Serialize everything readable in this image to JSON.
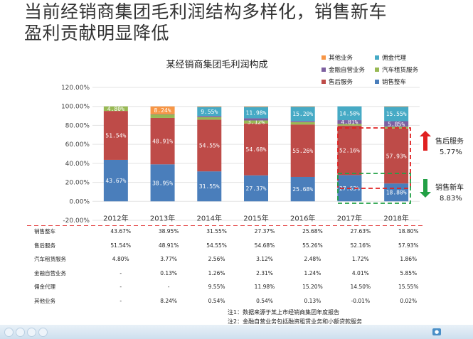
{
  "headline": {
    "line1": "当前经销商集团毛利润结构多样化，销售新车",
    "line2": "盈利贡献明显降低"
  },
  "chart_data": {
    "type": "bar",
    "stacked": true,
    "title": "某经销商集团毛利润构成",
    "categories": [
      "2012年",
      "2013年",
      "2014年",
      "2015年",
      "2016年",
      "2017年",
      "2018年"
    ],
    "y_ticks": [
      "-20.00%",
      "0.00%",
      "20.00%",
      "40.00%",
      "60.00%",
      "80.00%",
      "100.00%",
      "120.00%"
    ],
    "ylim": [
      -20,
      120
    ],
    "legend_position": "top-right",
    "series": [
      {
        "name": "销售整车",
        "color": "#4a7ebb",
        "values": [
          43.67,
          38.95,
          31.55,
          27.37,
          25.68,
          27.63,
          18.8
        ],
        "labels": [
          "43.67%",
          "38.95%",
          "31.55%",
          "27.37%",
          "25.68%",
          "27.63%",
          "18.80%"
        ]
      },
      {
        "name": "售后服务",
        "color": "#be4b48",
        "values": [
          51.54,
          48.91,
          54.55,
          54.68,
          55.26,
          52.16,
          57.93
        ],
        "labels": [
          "51.54%",
          "48.91%",
          "54.55%",
          "54.68%",
          "55.26%",
          "52.16%",
          "57.93%"
        ]
      },
      {
        "name": "汽车租赁服务",
        "color": "#98b954",
        "values": [
          4.8,
          3.77,
          2.56,
          3.12,
          2.48,
          1.72,
          1.86
        ],
        "labels": [
          "4.80%",
          "",
          "",
          "3.12%",
          "",
          "",
          ""
        ]
      },
      {
        "name": "金融自营业务",
        "color": "#7d60a0",
        "values": [
          0,
          0.13,
          1.26,
          2.31,
          1.24,
          4.01,
          5.85
        ],
        "labels": [
          "",
          "",
          "",
          "",
          "",
          "4.01%",
          "5.85%"
        ]
      },
      {
        "name": "佣金代理",
        "color": "#46aac5",
        "values": [
          0,
          0,
          9.55,
          11.98,
          15.2,
          14.5,
          15.55
        ],
        "labels": [
          "",
          "",
          "9.55%",
          "11.98%",
          "15.20%",
          "14.50%",
          "15.55%"
        ]
      },
      {
        "name": "其他业务",
        "color": "#f79646",
        "values": [
          0,
          8.24,
          0.54,
          0.54,
          0.13,
          -0.01,
          0.02
        ],
        "labels": [
          "",
          "8.24%",
          "",
          "",
          "",
          "",
          ""
        ]
      }
    ],
    "annotations": [
      {
        "label": "售后服务",
        "value": "5.77%",
        "direction": "up",
        "color": "#e02020"
      },
      {
        "label": "销售新车",
        "value": "8.83%",
        "direction": "down",
        "color": "#22a045"
      }
    ]
  },
  "table": {
    "rows": [
      {
        "name": "销售整车",
        "cells": [
          "43.67%",
          "38.95%",
          "31.55%",
          "27.37%",
          "25.68%",
          "27.63%",
          "18.80%"
        ]
      },
      {
        "name": "售后服务",
        "cells": [
          "51.54%",
          "48.91%",
          "54.55%",
          "54.68%",
          "55.26%",
          "52.16%",
          "57.93%"
        ]
      },
      {
        "name": "汽车租赁服务",
        "cells": [
          "4.80%",
          "3.77%",
          "2.56%",
          "3.12%",
          "2.48%",
          "1.72%",
          "1.86%"
        ]
      },
      {
        "name": "金融自营业务",
        "cells": [
          "-",
          "0.13%",
          "1.26%",
          "2.31%",
          "1.24%",
          "4.01%",
          "5.85%"
        ]
      },
      {
        "name": "佣金代理",
        "cells": [
          "-",
          "-",
          "9.55%",
          "11.98%",
          "15.20%",
          "14.50%",
          "15.55%"
        ]
      },
      {
        "name": "其他业务",
        "cells": [
          "-",
          "8.24%",
          "0.54%",
          "0.54%",
          "0.13%",
          "-0.01%",
          "0.02%"
        ]
      }
    ]
  },
  "notes": {
    "note1": "注1：数据来源于某上市经销商集团年度报告",
    "note2": "注2：金融自营业务包括融资租赁业务和小额贷款服务"
  }
}
